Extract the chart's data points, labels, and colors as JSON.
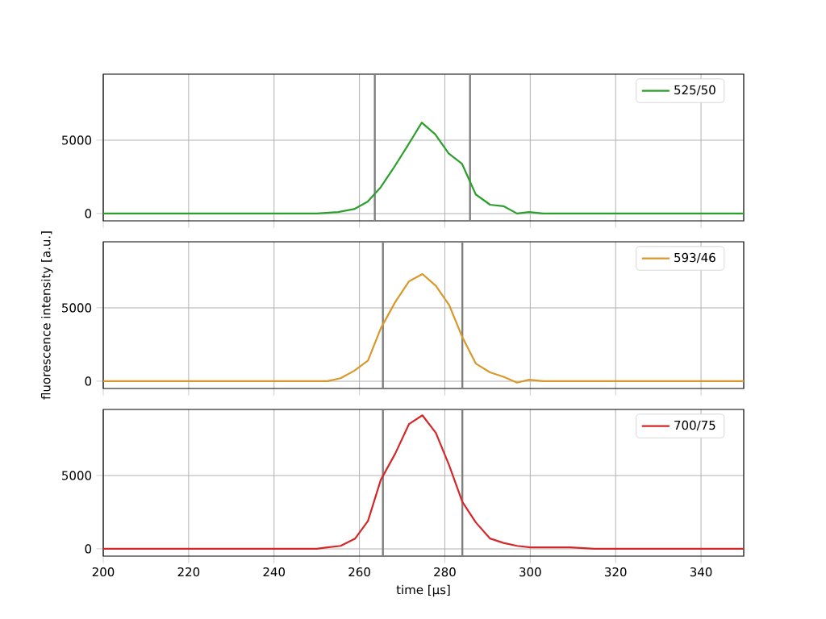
{
  "chart_data": [
    {
      "type": "line",
      "x": [
        200,
        220,
        240,
        250,
        255,
        258.75,
        261.9,
        265,
        268,
        271.25,
        274.6,
        277.75,
        280.9,
        284,
        287.25,
        290.6,
        293.75,
        296.9,
        299.75,
        303,
        310,
        320,
        330,
        350
      ],
      "series": [
        {
          "name": "525/50",
          "color": "#2ca02c",
          "values": [
            0,
            0,
            0,
            0,
            100,
            300,
            800,
            1800,
            3100,
            4600,
            6200,
            5400,
            4100,
            3400,
            1300,
            600,
            500,
            0,
            100,
            0,
            0,
            0,
            0,
            0
          ]
        }
      ],
      "xlim": [
        200,
        350
      ],
      "ylim": [
        -500,
        9500
      ],
      "xticks": [
        200,
        220,
        240,
        260,
        280,
        300,
        320,
        340
      ],
      "yticks": [
        0,
        5000
      ],
      "ref_lines": [
        {
          "axis": "x",
          "value": 263.6,
          "color": "#808080"
        },
        {
          "axis": "x",
          "value": 285.9,
          "color": "#808080"
        }
      ],
      "grid": true,
      "legend": "top right",
      "tick_labels": "y"
    },
    {
      "type": "line",
      "ylabel": "fluorescence intensity [a.u.]",
      "x": [
        200,
        220,
        240,
        250,
        252.5,
        255.6,
        258.75,
        262,
        265,
        268.4,
        271.6,
        274.75,
        277.9,
        281,
        284.1,
        287.25,
        290.6,
        293.75,
        296.9,
        299.75,
        303,
        310,
        320,
        350
      ],
      "series": [
        {
          "name": "593/46",
          "color": "#d9992a",
          "values": [
            0,
            0,
            0,
            0,
            0,
            200,
            700,
            1400,
            3600,
            5400,
            6800,
            7300,
            6500,
            5200,
            3000,
            1200,
            600,
            300,
            -100,
            100,
            0,
            0,
            0,
            0
          ]
        }
      ],
      "xlim": [
        200,
        350
      ],
      "ylim": [
        -500,
        9500
      ],
      "xticks": [
        200,
        220,
        240,
        260,
        280,
        300,
        320,
        340
      ],
      "yticks": [
        0,
        5000
      ],
      "ref_lines": [
        {
          "axis": "x",
          "value": 265.5,
          "color": "#808080"
        },
        {
          "axis": "x",
          "value": 284.1,
          "color": "#808080"
        }
      ],
      "grid": true,
      "legend": "top right",
      "tick_labels": "y"
    },
    {
      "type": "line",
      "xlabel": "time [μs]",
      "x": [
        200,
        220,
        240,
        250,
        252.5,
        255.6,
        259,
        262,
        265,
        268.4,
        271.6,
        274.75,
        277.9,
        281,
        284.1,
        287.25,
        290.6,
        293.75,
        296.9,
        300,
        309.4,
        315,
        320,
        350
      ],
      "series": [
        {
          "name": "700/75",
          "color": "#d62728",
          "values": [
            0,
            0,
            0,
            0,
            100,
            200,
            700,
            1900,
            4700,
            6500,
            8500,
            9100,
            7900,
            5700,
            3200,
            1800,
            700,
            400,
            200,
            100,
            100,
            0,
            0,
            0
          ]
        }
      ],
      "xlim": [
        200,
        350
      ],
      "ylim": [
        -500,
        9500
      ],
      "xticks": [
        200,
        220,
        240,
        260,
        280,
        300,
        320,
        340
      ],
      "yticks": [
        0,
        5000
      ],
      "ref_lines": [
        {
          "axis": "x",
          "value": 265.5,
          "color": "#808080"
        },
        {
          "axis": "x",
          "value": 284.1,
          "color": "#808080"
        }
      ],
      "grid": true,
      "legend": "top right"
    }
  ]
}
